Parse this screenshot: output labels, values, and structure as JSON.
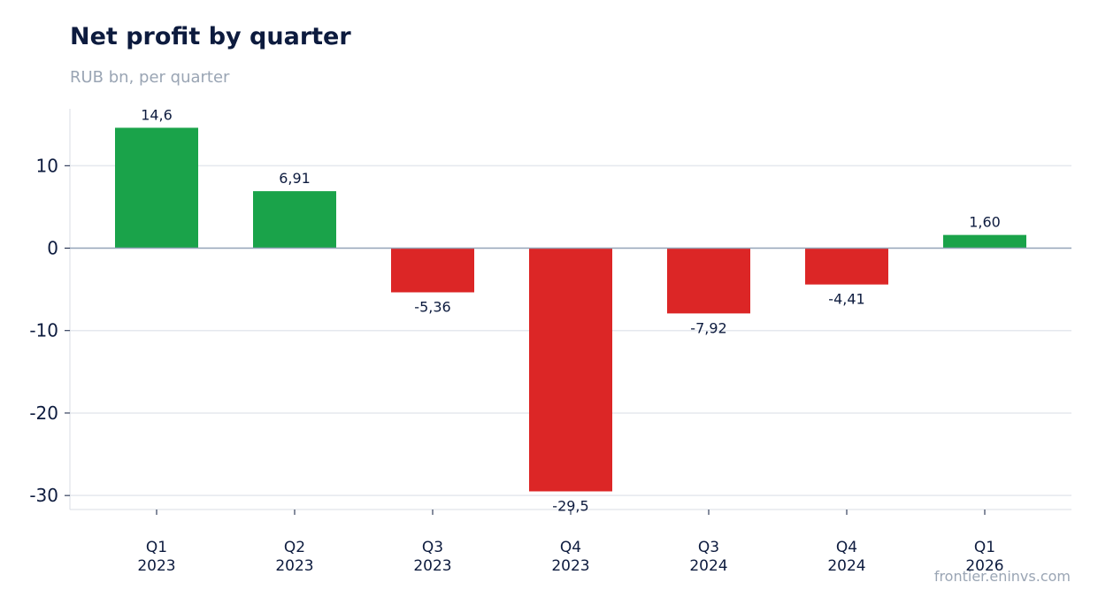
{
  "header": {
    "title": "Net profit by quarter",
    "subtitle": "RUB bn, per quarter"
  },
  "watermark": "frontier.eninvs.com",
  "colors": {
    "positive": "#1aa34a",
    "negative": "#dc2626",
    "grid": "#e5e8ee",
    "zero_line": "#94a3b8",
    "axis": "#d9dee6"
  },
  "chart_data": {
    "type": "bar",
    "title": "Net profit by quarter",
    "subtitle": "RUB bn, per quarter",
    "categories": [
      [
        "Q1",
        "2023"
      ],
      [
        "Q2",
        "2023"
      ],
      [
        "Q3",
        "2023"
      ],
      [
        "Q4",
        "2023"
      ],
      [
        "Q3",
        "2024"
      ],
      [
        "Q4",
        "2024"
      ],
      [
        "Q1",
        "2026"
      ]
    ],
    "values": [
      14.6,
      6.91,
      -5.36,
      -29.5,
      -7.92,
      -4.41,
      1.6
    ],
    "value_labels": [
      "14,6",
      "6,91",
      "-5,36",
      "-29,5",
      "-7,92",
      "-4,41",
      "1,60"
    ],
    "yticks": [
      10,
      0,
      -10,
      -20,
      -30
    ],
    "ytick_labels": [
      "10",
      "0",
      "-10",
      "-20",
      "-30"
    ],
    "ylim": [
      -31.7,
      16.9
    ],
    "grid": true,
    "legend": "none"
  }
}
